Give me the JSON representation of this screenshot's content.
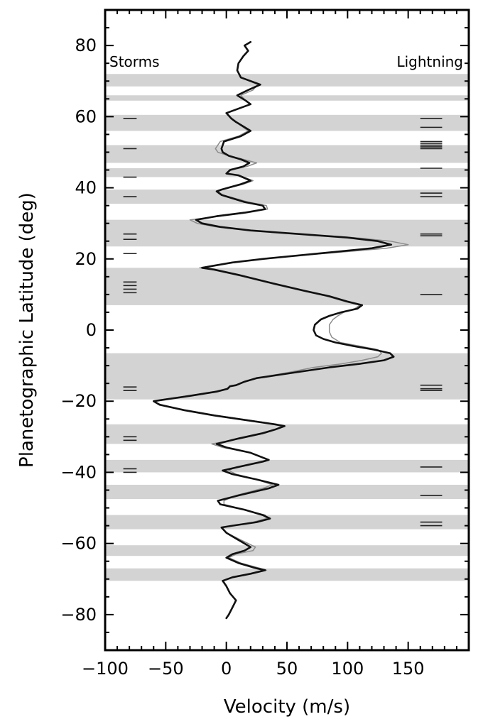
{
  "chart_data": {
    "type": "line",
    "title": "",
    "xlabel": "Velocity (m/s)",
    "ylabel": "Planetographic Latitude (deg)",
    "xlim": [
      -100,
      200
    ],
    "ylim": [
      -90,
      90
    ],
    "x_ticks": [
      -100,
      -50,
      0,
      50,
      100,
      150
    ],
    "x_tick_labels": [
      "−100",
      "−50",
      "0",
      "50",
      "100",
      "150"
    ],
    "y_ticks": [
      80,
      60,
      40,
      20,
      0,
      -20,
      -40,
      -60,
      -80
    ],
    "y_tick_labels": [
      "80",
      "60",
      "40",
      "20",
      "0",
      "−20",
      "−40",
      "−60",
      "−80"
    ],
    "grid": false,
    "annotations": {
      "storms_label": "Storms",
      "lightning_label": "Lightning"
    },
    "colors": {
      "band": "#d3d3d3",
      "profile_primary": "#111111",
      "profile_secondary": "#8c8c8c",
      "markers": "#222222"
    },
    "shaded_bands": [
      [
        68.5,
        72
      ],
      [
        64.5,
        66
      ],
      [
        56,
        60.5
      ],
      [
        47,
        52
      ],
      [
        43,
        45.5
      ],
      [
        35.5,
        39.5
      ],
      [
        23.5,
        31
      ],
      [
        7,
        17.5
      ],
      [
        -19.5,
        -6.5
      ],
      [
        -32,
        -26.5
      ],
      [
        -40,
        -36.5
      ],
      [
        -47.5,
        -43.5
      ],
      [
        -56,
        -52
      ],
      [
        -63.5,
        -60.5
      ],
      [
        -70.5,
        -67
      ]
    ],
    "storm_latitudes": [
      59.5,
      51,
      43,
      37.5,
      27,
      25.5,
      21.5,
      13.5,
      12.5,
      11.5,
      10.5,
      -16,
      -17,
      -30,
      -31,
      -39,
      -40
    ],
    "lightning_latitudes": [
      59.5,
      57,
      53,
      52.5,
      52,
      51.5,
      51,
      45.5,
      38.5,
      37.5,
      27,
      26.5,
      10,
      -15.5,
      -16.5,
      -17,
      -38.5,
      -46.5,
      -54,
      -55
    ],
    "series": [
      {
        "points": [
          [
            20,
            81
          ],
          [
            15,
            80
          ],
          [
            18,
            78.5
          ],
          [
            14,
            77
          ],
          [
            10,
            75
          ],
          [
            9,
            73
          ],
          [
            12,
            71
          ],
          [
            28,
            69
          ],
          [
            18,
            67.5
          ],
          [
            9,
            66
          ],
          [
            16,
            64.5
          ],
          [
            20,
            63.5
          ],
          [
            8,
            62
          ],
          [
            0,
            61
          ],
          [
            4,
            59.5
          ],
          [
            8,
            58.5
          ],
          [
            20,
            56
          ],
          [
            12,
            54.5
          ],
          [
            -2,
            53
          ],
          [
            -4,
            51
          ],
          [
            -3,
            50
          ],
          [
            2,
            49
          ],
          [
            12,
            48
          ],
          [
            19,
            47
          ],
          [
            14,
            46
          ],
          [
            3,
            45
          ],
          [
            0,
            44
          ],
          [
            10,
            43.5
          ],
          [
            20,
            42
          ],
          [
            12,
            41
          ],
          [
            -4,
            39.5
          ],
          [
            -8,
            39
          ],
          [
            -4,
            38
          ],
          [
            15,
            36
          ],
          [
            30,
            35
          ],
          [
            32,
            34
          ],
          [
            15,
            33
          ],
          [
            -8,
            32
          ],
          [
            -25,
            31
          ],
          [
            -20,
            30
          ],
          [
            -5,
            29
          ],
          [
            20,
            28
          ],
          [
            60,
            27
          ],
          [
            100,
            26
          ],
          [
            125,
            25
          ],
          [
            136,
            24
          ],
          [
            120,
            23
          ],
          [
            90,
            22
          ],
          [
            60,
            21
          ],
          [
            30,
            20
          ],
          [
            5,
            19
          ],
          [
            -12,
            18
          ],
          [
            -20,
            17.5
          ],
          [
            -10,
            17
          ],
          [
            10,
            15.5
          ],
          [
            40,
            13
          ],
          [
            65,
            11
          ],
          [
            85,
            9.5
          ],
          [
            100,
            8
          ],
          [
            112,
            7
          ],
          [
            108,
            6
          ],
          [
            95,
            5
          ],
          [
            85,
            4
          ],
          [
            78,
            3
          ],
          [
            73,
            1.5
          ],
          [
            72,
            0
          ],
          [
            74,
            -1.5
          ],
          [
            80,
            -2.5
          ],
          [
            90,
            -3.5
          ],
          [
            105,
            -4.5
          ],
          [
            122,
            -5.5
          ],
          [
            135,
            -6.5
          ],
          [
            138,
            -7.5
          ],
          [
            130,
            -8.5
          ],
          [
            110,
            -9.5
          ],
          [
            85,
            -10.5
          ],
          [
            55,
            -12
          ],
          [
            25,
            -13.5
          ],
          [
            15,
            -14.5
          ],
          [
            8,
            -15.5
          ],
          [
            3,
            -15.8
          ],
          [
            1,
            -16.5
          ],
          [
            -8,
            -17.3
          ],
          [
            -30,
            -18.5
          ],
          [
            -50,
            -19.5
          ],
          [
            -60,
            -20
          ],
          [
            -55,
            -21
          ],
          [
            -35,
            -22.5
          ],
          [
            -10,
            -24
          ],
          [
            20,
            -25.5
          ],
          [
            40,
            -26.5
          ],
          [
            48,
            -27
          ],
          [
            40,
            -28
          ],
          [
            30,
            -29
          ],
          [
            10,
            -30.5
          ],
          [
            -8,
            -32
          ],
          [
            0,
            -33
          ],
          [
            20,
            -34.5
          ],
          [
            35,
            -36.5
          ],
          [
            30,
            -37
          ],
          [
            10,
            -38.5
          ],
          [
            -3,
            -39.5
          ],
          [
            5,
            -40.5
          ],
          [
            25,
            -42
          ],
          [
            43,
            -43.5
          ],
          [
            35,
            -44.5
          ],
          [
            10,
            -46.5
          ],
          [
            -7,
            -48
          ],
          [
            -5,
            -49
          ],
          [
            15,
            -50.5
          ],
          [
            30,
            -52
          ],
          [
            36,
            -53
          ],
          [
            25,
            -54
          ],
          [
            5,
            -55
          ],
          [
            -4,
            -55.5
          ],
          [
            0,
            -57
          ],
          [
            10,
            -59
          ],
          [
            20,
            -61
          ],
          [
            15,
            -62
          ],
          [
            5,
            -63
          ],
          [
            0,
            -64
          ],
          [
            10,
            -65.5
          ],
          [
            25,
            -67
          ],
          [
            32,
            -67.5
          ],
          [
            20,
            -68.5
          ],
          [
            5,
            -69.5
          ],
          [
            -3,
            -70.5
          ],
          [
            0,
            -72
          ],
          [
            3,
            -74
          ],
          [
            8,
            -76
          ],
          [
            5,
            -78
          ],
          [
            2,
            -80
          ],
          [
            0,
            -81
          ]
        ]
      },
      {
        "points": [
          [
            10,
            75
          ],
          [
            9,
            73
          ],
          [
            12,
            71
          ],
          [
            26,
            69
          ],
          [
            22,
            67.5
          ],
          [
            12,
            66
          ],
          [
            16,
            64.5
          ],
          [
            20,
            63.5
          ],
          [
            8,
            62
          ],
          [
            0,
            61
          ],
          [
            4,
            59.5
          ],
          [
            8,
            58.5
          ],
          [
            18,
            56
          ],
          [
            10,
            54.5
          ],
          [
            -5,
            53
          ],
          [
            -9,
            51
          ],
          [
            -7,
            50
          ],
          [
            2,
            49
          ],
          [
            14,
            48
          ],
          [
            25,
            47
          ],
          [
            17,
            46
          ],
          [
            4,
            45
          ],
          [
            0,
            44
          ],
          [
            10,
            43.5
          ],
          [
            22,
            42
          ],
          [
            14,
            41
          ],
          [
            -3,
            39.5
          ],
          [
            -7,
            39
          ],
          [
            -3,
            38
          ],
          [
            18,
            36
          ],
          [
            33,
            35
          ],
          [
            34,
            34
          ],
          [
            18,
            33
          ],
          [
            -5,
            32
          ],
          [
            -30,
            31
          ],
          [
            -24,
            30
          ],
          [
            -8,
            29
          ],
          [
            20,
            28
          ],
          [
            60,
            27
          ],
          [
            105,
            26
          ],
          [
            135,
            25
          ],
          [
            150,
            24
          ],
          [
            132,
            23
          ],
          [
            98,
            22
          ],
          [
            62,
            21
          ],
          [
            30,
            20
          ],
          [
            5,
            19
          ],
          [
            -12,
            18
          ],
          [
            -22,
            17.5
          ],
          [
            -12,
            17
          ],
          [
            8,
            15.5
          ],
          [
            38,
            13
          ],
          [
            63,
            11
          ],
          [
            83,
            9.5
          ],
          [
            98,
            8
          ],
          [
            110,
            7
          ],
          [
            106,
            6
          ],
          [
            97,
            5
          ],
          [
            92,
            4
          ],
          [
            88,
            3
          ],
          [
            85,
            1.5
          ],
          [
            85,
            -0.5
          ],
          [
            87,
            -2
          ],
          [
            94,
            -3.5
          ],
          [
            110,
            -4.5
          ],
          [
            125,
            -5.5
          ],
          [
            128,
            -6.5
          ],
          [
            125,
            -7.5
          ],
          [
            112,
            -8.5
          ],
          [
            95,
            -9.5
          ],
          [
            72,
            -10.5
          ],
          [
            50,
            -12
          ],
          [
            25,
            -13.5
          ],
          [
            15,
            -14.5
          ],
          [
            8,
            -15.5
          ],
          [
            3,
            -15.8
          ],
          [
            0,
            -16.5
          ],
          [
            -10,
            -17.3
          ],
          [
            -32,
            -18.5
          ],
          [
            -52,
            -19.5
          ],
          [
            -60,
            -20
          ],
          [
            -54,
            -21
          ],
          [
            -33,
            -22.5
          ],
          [
            -8,
            -24
          ],
          [
            22,
            -25.5
          ],
          [
            42,
            -26.5
          ],
          [
            46,
            -27
          ],
          [
            40,
            -28
          ],
          [
            32,
            -29
          ],
          [
            12,
            -30.5
          ],
          [
            -12,
            -32
          ],
          [
            -3,
            -33
          ],
          [
            20,
            -34.5
          ],
          [
            34,
            -36.5
          ],
          [
            28,
            -37
          ],
          [
            8,
            -38.5
          ],
          [
            2,
            -39.5
          ],
          [
            8,
            -40.5
          ],
          [
            25,
            -42
          ],
          [
            38,
            -43.5
          ],
          [
            30,
            -44.5
          ],
          [
            8,
            -46.5
          ],
          [
            -2,
            -48
          ],
          [
            -2,
            -49
          ],
          [
            15,
            -50.5
          ],
          [
            32,
            -52
          ],
          [
            33,
            -53
          ],
          [
            22,
            -54
          ],
          [
            5,
            -55
          ],
          [
            -4,
            -55.5
          ],
          [
            0,
            -57
          ],
          [
            12,
            -59
          ],
          [
            24,
            -61
          ],
          [
            22,
            -62
          ],
          [
            8,
            -63
          ],
          [
            2,
            -64
          ],
          [
            12,
            -65.5
          ],
          [
            28,
            -67
          ],
          [
            33,
            -67.5
          ],
          [
            20,
            -68.5
          ]
        ]
      }
    ]
  }
}
